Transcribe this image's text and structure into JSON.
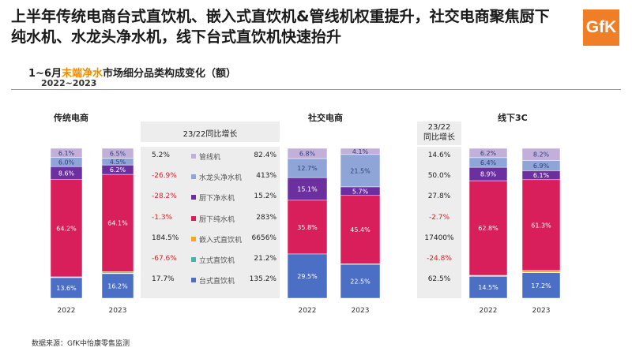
{
  "headline": "上半年传统电商台式直饮机、嵌入式直饮机&管线机权重提升，社交电商聚焦厨下纯水机、水龙头净水机，线下台式直饮机快速抬升",
  "logo_text": "GfK",
  "subtitle": {
    "prefix": "1~6月",
    "highlight": "末端净水",
    "suffix": "市场细分品类构成变化（额）"
  },
  "years_range": "2022~2023",
  "growth_header": "23/22同比增长",
  "growth_header_line1": "23/22",
  "growth_header_line2": "同比增长",
  "source": "数据来源：GfK中怡康零售监测",
  "colors": {
    "accent": "#f08c00",
    "negative": "#d0262d",
    "logo": "#f07e26"
  },
  "chart_data": [
    {
      "type": "stacked-bar",
      "title": "传统电商",
      "categories": [
        "2022",
        "2023"
      ],
      "series": [
        {
          "name": "台式直饮机",
          "color": "#4a6fc4",
          "values": [
            13.6,
            16.2
          ],
          "labels": [
            "13.6%",
            "16.2%"
          ],
          "growth": "17.7%",
          "share_growth": "135.2%"
        },
        {
          "name": "立式直饮机",
          "color": "#3fb8a6",
          "values": [
            0.3,
            0.3
          ],
          "labels": [
            "",
            ""
          ],
          "growth": "-67.6%",
          "share_growth": "21.2%"
        },
        {
          "name": "嵌入式直饮机",
          "color": "#f5a623",
          "values": [
            0.2,
            1.0
          ],
          "labels": [
            "",
            ""
          ],
          "growth": "184.5%",
          "share_growth": "6656%"
        },
        {
          "name": "厨下纯水机",
          "color": "#d81e5b",
          "values": [
            64.2,
            64.1
          ],
          "labels": [
            "64.2%",
            "64.1%"
          ],
          "growth": "-1.3%",
          "share_growth": "283%"
        },
        {
          "name": "厨下净水机",
          "color": "#6b2fa0",
          "values": [
            8.6,
            6.2
          ],
          "labels": [
            "8.6%",
            "6.2%"
          ],
          "growth": "-28.2%",
          "share_growth": "15.2%"
        },
        {
          "name": "水龙头净水机",
          "color": "#8fa5d8",
          "values": [
            6.0,
            4.5
          ],
          "labels": [
            "6.0%",
            "4.5%"
          ],
          "growth": "-26.9%",
          "share_growth": "413%"
        },
        {
          "name": "管线机",
          "color": "#c3b0da",
          "values": [
            6.1,
            6.5
          ],
          "labels": [
            "6.1%",
            "6.5%"
          ],
          "growth": "5.2%",
          "share_growth": "82.4%"
        }
      ]
    },
    {
      "type": "stacked-bar",
      "title": "社交电商",
      "categories": [
        "2022",
        "2023"
      ],
      "series": [
        {
          "name": "台式直饮机",
          "color": "#4a6fc4",
          "values": [
            29.5,
            22.5
          ],
          "labels": [
            "29.5%",
            "22.5%"
          ]
        },
        {
          "name": "立式直饮机",
          "color": "#3fb8a6",
          "values": [
            0.0,
            0.0
          ],
          "labels": [
            "",
            ""
          ]
        },
        {
          "name": "嵌入式直饮机",
          "color": "#f5a623",
          "values": [
            0.0,
            0.3
          ],
          "labels": [
            "",
            ""
          ]
        },
        {
          "name": "厨下纯水机",
          "color": "#d81e5b",
          "values": [
            35.8,
            45.4
          ],
          "labels": [
            "35.8%",
            "45.4%"
          ]
        },
        {
          "name": "厨下净水机",
          "color": "#6b2fa0",
          "values": [
            15.1,
            5.7
          ],
          "labels": [
            "15.1%",
            "5.7%"
          ]
        },
        {
          "name": "水龙头净水机",
          "color": "#8fa5d8",
          "values": [
            12.7,
            21.5
          ],
          "labels": [
            "12.7%",
            "21.5%"
          ]
        },
        {
          "name": "管线机",
          "color": "#c3b0da",
          "values": [
            6.8,
            4.1
          ],
          "labels": [
            "6.8%",
            "4.1%"
          ]
        }
      ]
    },
    {
      "type": "stacked-bar",
      "title": "线下3C",
      "categories": [
        "2022",
        "2023"
      ],
      "series": [
        {
          "name": "台式直饮机",
          "color": "#4a6fc4",
          "values": [
            14.5,
            17.2
          ],
          "labels": [
            "14.5%",
            "17.2%"
          ],
          "growth": "62.5%"
        },
        {
          "name": "立式直饮机",
          "color": "#3fb8a6",
          "values": [
            0.3,
            0.2
          ],
          "labels": [
            "",
            ""
          ],
          "growth": "-24.8%"
        },
        {
          "name": "嵌入式直饮机",
          "color": "#f5a623",
          "values": [
            0.4,
            1.3
          ],
          "labels": [
            "",
            ""
          ],
          "growth": "17400%"
        },
        {
          "name": "厨下纯水机",
          "color": "#d81e5b",
          "values": [
            62.8,
            61.3
          ],
          "labels": [
            "62.8%",
            "61.3%"
          ],
          "growth": "-2.7%"
        },
        {
          "name": "厨下净水机",
          "color": "#6b2fa0",
          "values": [
            8.9,
            6.1
          ],
          "labels": [
            "8.9%",
            "6.1%"
          ],
          "growth": "27.8%"
        },
        {
          "name": "水龙头净水机",
          "color": "#8fa5d8",
          "values": [
            6.4,
            6.9
          ],
          "labels": [
            "6.4%",
            "6.9%"
          ],
          "growth": "50.0%"
        },
        {
          "name": "管线机",
          "color": "#c3b0da",
          "values": [
            6.2,
            8.2
          ],
          "labels": [
            "6.2%",
            "8.2%"
          ],
          "growth": "14.6%"
        }
      ]
    }
  ]
}
